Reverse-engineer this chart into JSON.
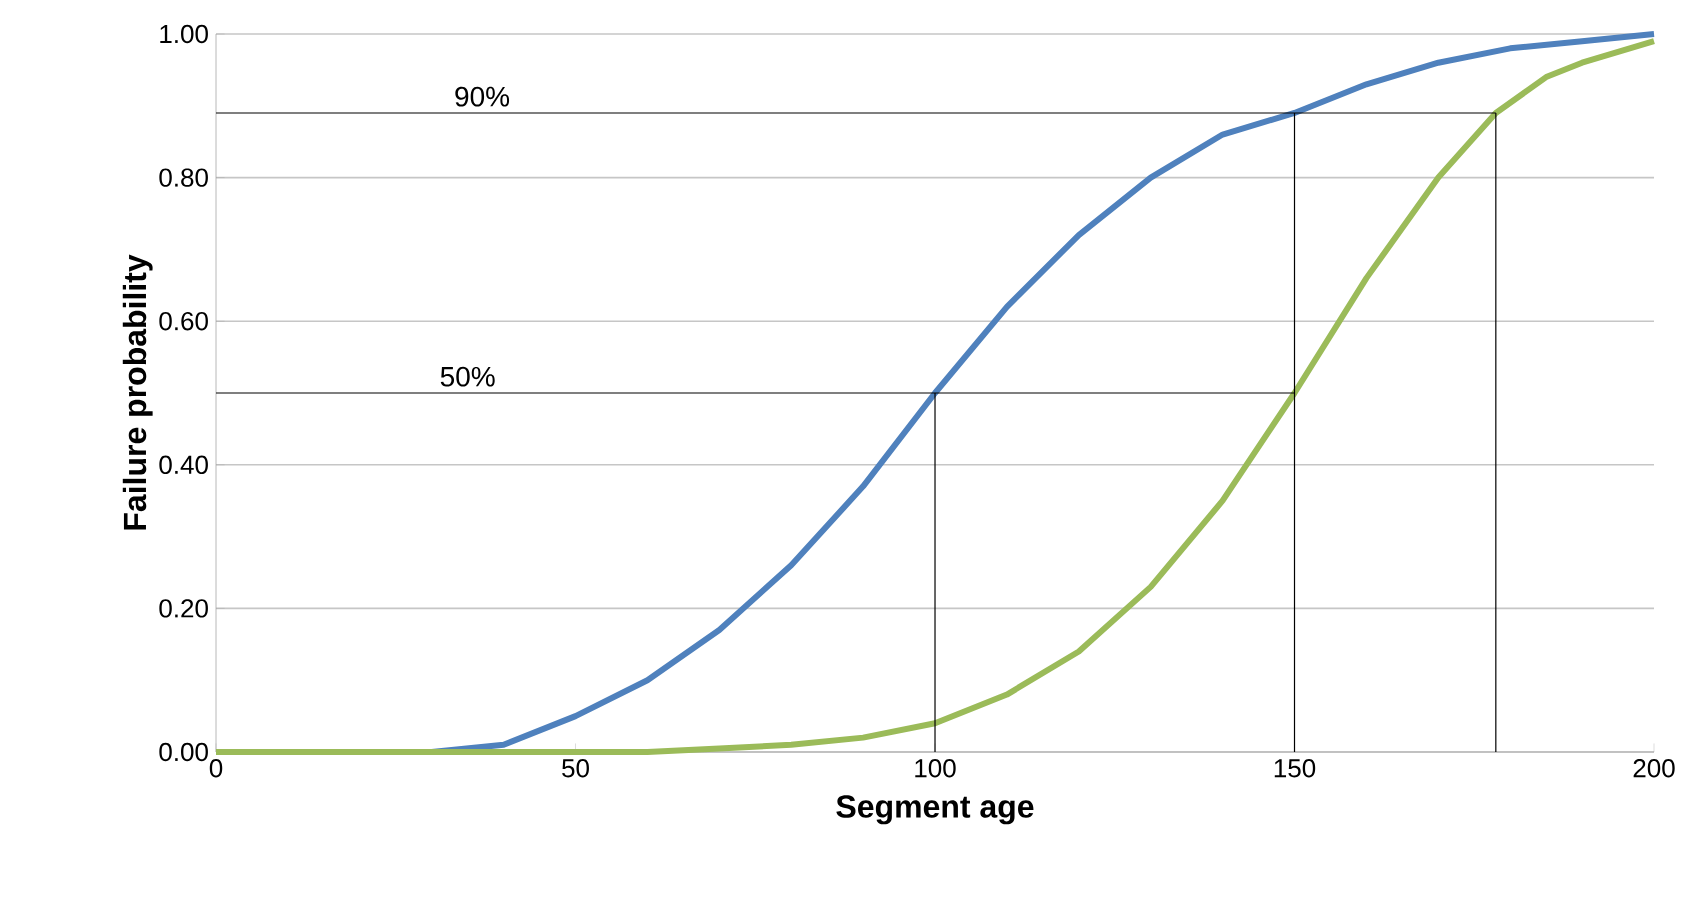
{
  "chart_data": {
    "type": "line",
    "xlabel": "Segment age",
    "ylabel": "Failure probability",
    "xlim": [
      0,
      200
    ],
    "xticks": [
      0,
      50,
      100,
      150,
      200
    ],
    "ylim": [
      0,
      1
    ],
    "yticks": [
      {
        "value": 0,
        "label": "0.00"
      },
      {
        "value": 0.2,
        "label": "0.20"
      },
      {
        "value": 0.4,
        "label": "0.40"
      },
      {
        "value": 0.6,
        "label": "0.60"
      },
      {
        "value": 0.8,
        "label": "0.80"
      },
      {
        "value": 1,
        "label": "1.00"
      }
    ],
    "grid": "y",
    "marker": "none",
    "line_style": "solid",
    "series": [
      {
        "color": "#4f81bd",
        "x": [
          0,
          20,
          30,
          40,
          50,
          60,
          70,
          80,
          90,
          100,
          110,
          120,
          130,
          140,
          150,
          160,
          170,
          180,
          190,
          200
        ],
        "values": [
          0,
          0,
          0,
          0.01,
          0.05,
          0.1,
          0.17,
          0.26,
          0.37,
          0.5,
          0.62,
          0.72,
          0.8,
          0.86,
          0.89,
          0.93,
          0.96,
          0.98,
          0.99,
          1.0
        ]
      },
      {
        "color": "#9bbb59",
        "x": [
          0,
          50,
          60,
          70,
          80,
          90,
          100,
          110,
          120,
          130,
          140,
          150,
          160,
          170,
          178,
          185,
          190,
          200
        ],
        "values": [
          0,
          0,
          0,
          0.005,
          0.01,
          0.02,
          0.04,
          0.08,
          0.14,
          0.23,
          0.35,
          0.5,
          0.66,
          0.8,
          0.89,
          0.94,
          0.96,
          0.99
        ]
      },
      {
        "color": "#000000",
        "x": [
          0,
          178
        ],
        "values": [
          0.89,
          0.89
        ]
      },
      {
        "color": "#000000",
        "x": [
          0,
          150
        ],
        "values": [
          0.5,
          0.5
        ]
      },
      {
        "color": "#000000",
        "x": [
          100,
          100
        ],
        "values": [
          0,
          0.5
        ]
      },
      {
        "color": "#000000",
        "x": [
          150,
          150
        ],
        "values": [
          0,
          0.89
        ]
      },
      {
        "color": "#000000",
        "x": [
          178,
          178
        ],
        "values": [
          0,
          0.89
        ]
      }
    ],
    "annotations": [
      {
        "text": "90%",
        "x": 37,
        "y": 0.89
      },
      {
        "text": "50%",
        "x": 35,
        "y": 0.5
      }
    ]
  }
}
